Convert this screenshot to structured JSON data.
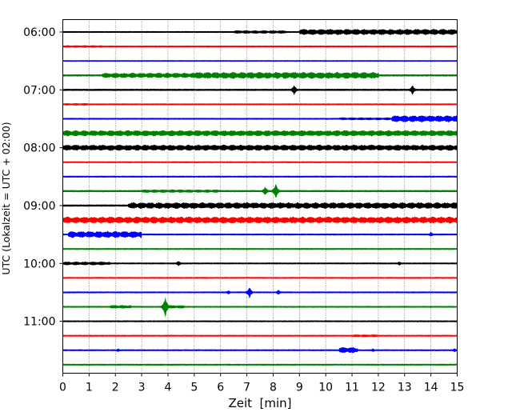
{
  "chart_data": {
    "type": "line",
    "title": "",
    "xlabel": "Zeit  [min]",
    "ylabel": "UTC (Lokalzeit = UTC + 02:00)",
    "xlim": [
      0,
      15
    ],
    "x_ticks": [
      0,
      1,
      2,
      3,
      4,
      5,
      6,
      7,
      8,
      9,
      10,
      11,
      12,
      13,
      14,
      15
    ],
    "x_tick_labels": [
      "0",
      "1",
      "2",
      "3",
      "4",
      "5",
      "6",
      "7",
      "8",
      "9",
      "10",
      "11",
      "12",
      "13",
      "14",
      "15"
    ],
    "y_ticks": [
      {
        "label": "06:00",
        "trace_index": 0
      },
      {
        "label": "07:00",
        "trace_index": 4
      },
      {
        "label": "08:00",
        "trace_index": 8
      },
      {
        "label": "09:00",
        "trace_index": 12
      },
      {
        "label": "10:00",
        "trace_index": 16
      },
      {
        "label": "11:00",
        "trace_index": 20
      }
    ],
    "grid": {
      "x": true,
      "y": false,
      "style": "dotted"
    },
    "trace_interval_minutes": 15,
    "series": [
      {
        "start": "06:00",
        "color": "#000000",
        "amplitude": 0.8,
        "bursts": [
          [
            6.5,
            8.5,
            1.8
          ],
          [
            9.0,
            15.0,
            3.5
          ]
        ]
      },
      {
        "start": "06:15",
        "color": "#ff0000",
        "amplitude": 0.8,
        "bursts": [
          [
            0.0,
            1.5,
            1.2
          ]
        ]
      },
      {
        "start": "06:30",
        "color": "#0000ff",
        "amplitude": 0.6,
        "bursts": []
      },
      {
        "start": "06:45",
        "color": "#008000",
        "amplitude": 1.0,
        "bursts": [
          [
            1.5,
            5.0,
            3.0
          ],
          [
            5.0,
            12.0,
            4.0
          ]
        ]
      },
      {
        "start": "07:00",
        "color": "#000000",
        "amplitude": 1.0,
        "bursts": [],
        "spikes": [
          [
            8.8,
            6.5
          ],
          [
            13.3,
            6.0
          ]
        ]
      },
      {
        "start": "07:15",
        "color": "#ff0000",
        "amplitude": 0.8,
        "bursts": [
          [
            0.0,
            1.0,
            1.2
          ]
        ]
      },
      {
        "start": "07:30",
        "color": "#0000ff",
        "amplitude": 0.8,
        "bursts": [
          [
            10.5,
            12.5,
            1.5
          ],
          [
            12.5,
            15.0,
            4.0
          ]
        ]
      },
      {
        "start": "07:45",
        "color": "#008000",
        "amplitude": 1.2,
        "bursts": [
          [
            0.0,
            15.0,
            3.5
          ]
        ]
      },
      {
        "start": "08:00",
        "color": "#000000",
        "amplitude": 1.2,
        "bursts": [
          [
            0.0,
            15.0,
            3.5
          ]
        ],
        "spikes": [
          [
            12.8,
            4.0
          ]
        ]
      },
      {
        "start": "08:15",
        "color": "#ff0000",
        "amplitude": 0.8,
        "bursts": []
      },
      {
        "start": "08:30",
        "color": "#0000ff",
        "amplitude": 0.8,
        "bursts": []
      },
      {
        "start": "08:45",
        "color": "#008000",
        "amplitude": 1.0,
        "bursts": [
          [
            3.0,
            6.0,
            1.8
          ]
        ],
        "spikes": [
          [
            8.1,
            10.0
          ],
          [
            7.7,
            6.0
          ]
        ]
      },
      {
        "start": "09:00",
        "color": "#000000",
        "amplitude": 1.0,
        "bursts": [
          [
            2.5,
            15.0,
            3.8
          ]
        ]
      },
      {
        "start": "09:15",
        "color": "#ff0000",
        "amplitude": 1.2,
        "bursts": [
          [
            0.0,
            15.0,
            4.0
          ]
        ]
      },
      {
        "start": "09:30",
        "color": "#0000ff",
        "amplitude": 0.8,
        "bursts": [
          [
            0.2,
            3.0,
            4.0
          ]
        ],
        "spikes": [
          [
            14.0,
            3.0
          ]
        ]
      },
      {
        "start": "09:45",
        "color": "#008000",
        "amplitude": 0.8,
        "bursts": []
      },
      {
        "start": "10:00",
        "color": "#000000",
        "amplitude": 0.8,
        "bursts": [
          [
            0.0,
            1.8,
            2.0
          ]
        ],
        "spikes": [
          [
            4.4,
            3.5
          ],
          [
            12.8,
            2.5
          ]
        ]
      },
      {
        "start": "10:15",
        "color": "#ff0000",
        "amplitude": 0.8,
        "bursts": []
      },
      {
        "start": "10:30",
        "color": "#0000ff",
        "amplitude": 0.8,
        "bursts": [],
        "spikes": [
          [
            7.1,
            7.0
          ],
          [
            8.2,
            3.0
          ],
          [
            6.3,
            2.5
          ]
        ]
      },
      {
        "start": "10:45",
        "color": "#008000",
        "amplitude": 0.8,
        "bursts": [
          [
            1.8,
            2.6,
            2.0
          ],
          [
            4.0,
            4.6,
            1.8
          ]
        ],
        "spikes": [
          [
            3.9,
            12.0
          ]
        ]
      },
      {
        "start": "11:00",
        "color": "#000000",
        "amplitude": 0.8,
        "bursts": []
      },
      {
        "start": "11:15",
        "color": "#ff0000",
        "amplitude": 0.8,
        "bursts": [
          [
            11.0,
            12.0,
            1.3
          ]
        ]
      },
      {
        "start": "11:30",
        "color": "#0000ff",
        "amplitude": 0.8,
        "bursts": [
          [
            10.5,
            11.2,
            3.5
          ]
        ],
        "spikes": [
          [
            2.1,
            2.0
          ],
          [
            14.9,
            2.5
          ],
          [
            11.8,
            2.0
          ]
        ]
      },
      {
        "start": "11:45",
        "color": "#008000",
        "amplitude": 0.8,
        "bursts": []
      }
    ]
  }
}
